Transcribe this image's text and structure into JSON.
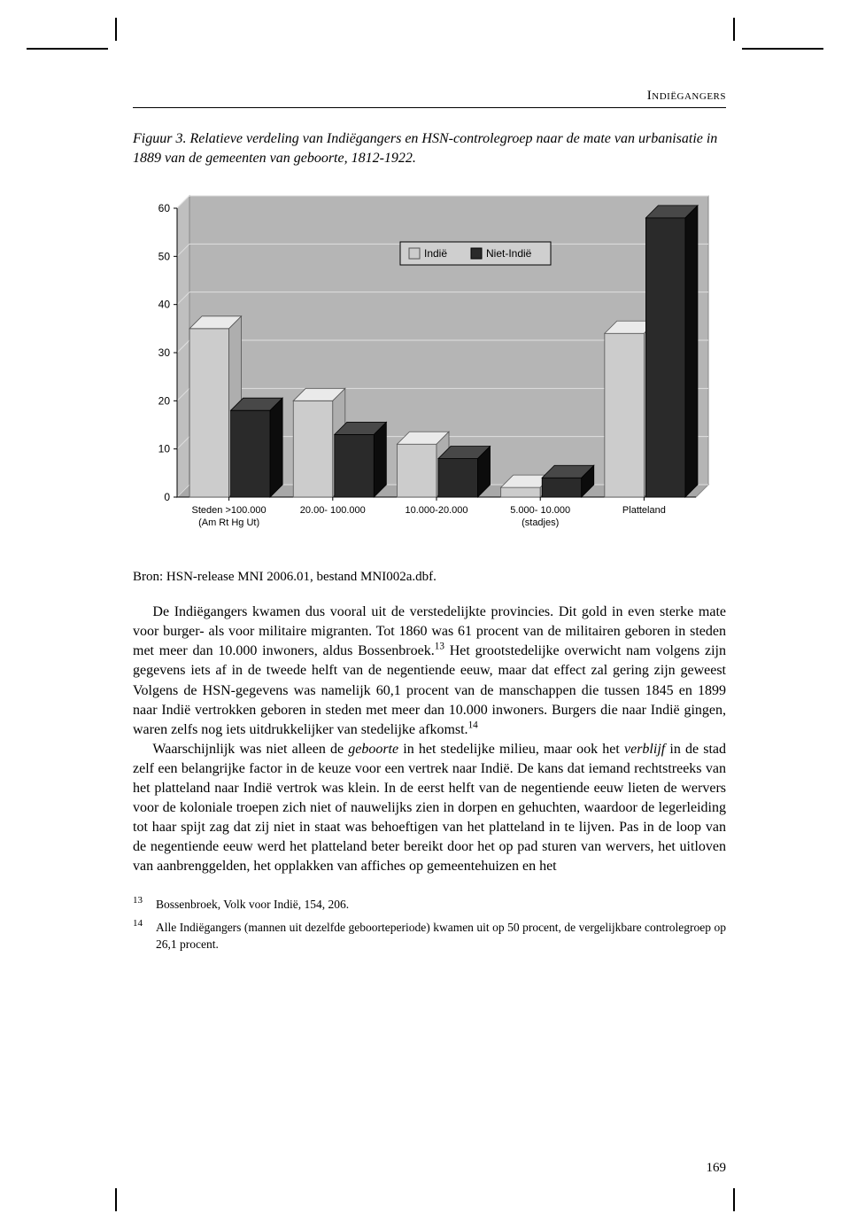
{
  "running_head": "Indiëgangers",
  "caption": "Figuur 3. Relatieve verdeling van Indiëgangers en HSN-controlegroep naar de mate van urbanisatie in 1889 van de gemeenten van geboorte, 1812-1922.",
  "source": "Bron: HSN-release MNI 2006.01, bestand MNI002a.dbf.",
  "chart": {
    "type": "bar",
    "ylim": [
      0,
      60
    ],
    "ytick_step": 10,
    "yticks": [
      0,
      10,
      20,
      30,
      40,
      50,
      60
    ],
    "categories": [
      [
        "Steden >100.000",
        "(Am Rt Hg Ut)"
      ],
      [
        "20.00- 100.000",
        ""
      ],
      [
        "10.000-20.000",
        ""
      ],
      [
        "5.000- 10.000",
        "(stadjes)"
      ],
      [
        "Platteland",
        ""
      ]
    ],
    "series": [
      {
        "name": "Indië",
        "color": "#cccccc",
        "stroke": "#555555",
        "values": [
          35,
          20,
          11,
          2,
          34
        ]
      },
      {
        "name": "Niet-Indië",
        "color": "#2a2a2a",
        "stroke": "#000000",
        "values": [
          18,
          13,
          8,
          4,
          58
        ]
      }
    ],
    "plot_bg": "#bfbfbf",
    "floor_color": "#a8a8a8",
    "back_wall_color": "#b5b5b5",
    "grid_color": "#e0e0e0",
    "axis_color": "#000000",
    "tick_font_size": 12,
    "legend": {
      "border_color": "#000000",
      "bg": "#cfcfcf",
      "font_size": 12
    },
    "bar_width": 0.38,
    "depth": 14
  },
  "para1_a": "De Indiëgangers kwamen dus vooral uit de verstedelijkte provincies. Dit gold in even sterke mate voor burger- als voor militaire migranten. Tot 1860 was 61 procent van de militairen geboren in steden met meer dan 10.000 inwoners, aldus Bossenbroek.",
  "para1_b": " Het grootstedelijke overwicht nam volgens zijn gegevens iets af in de tweede helft van de negentiende eeuw, maar dat effect zal gering zijn geweest Volgens de HSN-gegevens was namelijk 60,1 procent van de manschappen die tussen 1845 en 1899 naar Indië vertrokken geboren in steden met meer dan 10.000 inwoners. Burgers die naar Indië gingen, waren zelfs nog iets uitdrukkelijker van stedelijke afkomst.",
  "sup13": "13",
  "sup14": "14",
  "para2_a": "Waarschijnlijk was niet alleen de ",
  "para2_i1": "geboorte",
  "para2_b": " in het stedelijke milieu, maar ook het ",
  "para2_i2": "verblijf",
  "para2_c": " in de stad zelf een belangrijke factor in de keuze voor een vertrek naar Indië. De kans dat iemand rechtstreeks van het platteland naar Indië vertrok was klein. In de eerst helft van de negentiende eeuw lieten de wervers voor de koloniale troepen zich niet of nauwelijks zien in dorpen en gehuchten, waardoor de legerleiding tot haar spijt zag dat zij niet in staat was behoeftigen van het platteland in te lijven. Pas in de loop van de negentiende eeuw werd het platteland beter bereikt door het op pad sturen van wervers, het uitloven van aanbrenggelden, het opplakken van affiches op gemeentehuizen en het",
  "fn13_marker": "13",
  "fn13_a": "Bossenbroek, ",
  "fn13_i": "Volk voor Indië",
  "fn13_b": ", 154, 206.",
  "fn14_marker": "14",
  "fn14": "Alle Indiëgangers (mannen uit dezelfde geboorteperiode) kwamen uit op 50 procent, de vergelijkbare controlegroep op 26,1 procent.",
  "page_number": "169"
}
